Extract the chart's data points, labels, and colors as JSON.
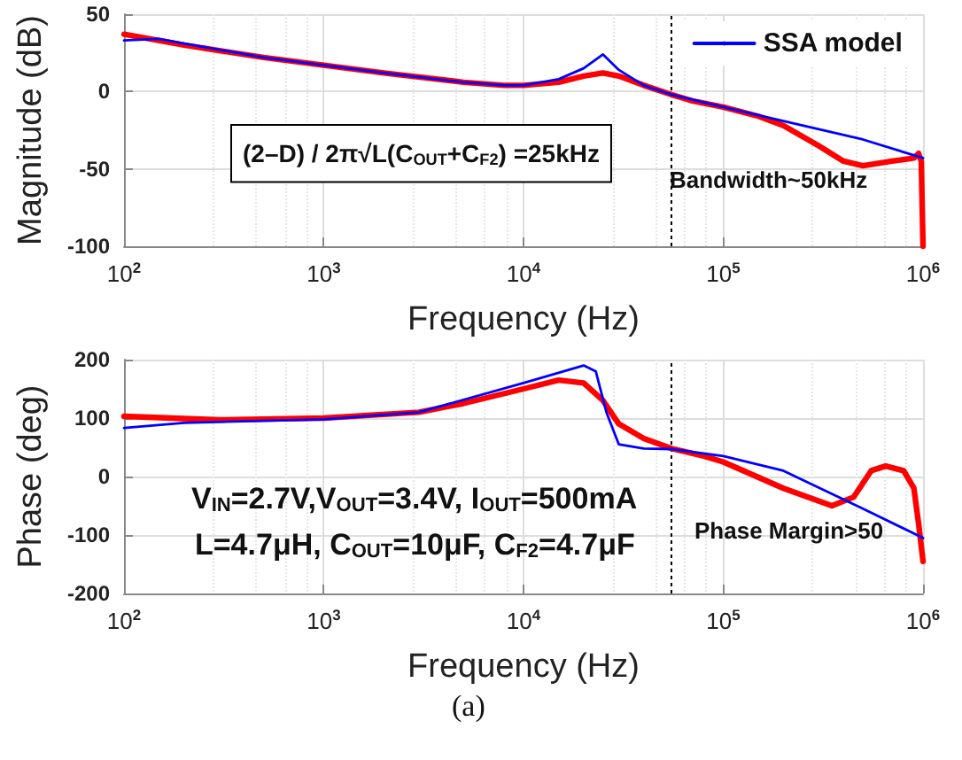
{
  "chart_data": [
    {
      "type": "line",
      "ylabel": "Magnitude (dB)",
      "xlabel": "Frequency (Hz)",
      "log": "x",
      "xlim": [
        100,
        1000000
      ],
      "xticks": [
        {
          "value": 100,
          "label": "10$^{2}$"
        },
        {
          "value": 1000,
          "label": "10$^{3}$"
        },
        {
          "value": 10000,
          "label": "10$^{4}$"
        },
        {
          "value": 100000,
          "label": "10$^{5}$"
        },
        {
          "value": 1000000,
          "label": "10$^{6}$"
        }
      ],
      "ylim": [
        -100,
        50
      ],
      "yticks": [
        -100,
        -50,
        0,
        50
      ],
      "grid": true,
      "legend": "top right",
      "series": [
        {
          "color": "#ff0000",
          "x": [
            100,
            200,
            500,
            1000,
            2000,
            5000,
            8000,
            10000,
            15000,
            20000,
            25000,
            30000,
            40000,
            55000,
            70000,
            100000,
            150000,
            200000,
            300000,
            400000,
            500000,
            700000,
            900000,
            950000,
            980000,
            1000000
          ],
          "values": [
            37,
            30,
            22,
            17,
            12,
            6,
            4,
            4,
            6,
            10,
            12,
            10,
            4,
            -2,
            -6,
            -10,
            -16,
            -22,
            -35,
            -45,
            -48,
            -45,
            -43,
            -40,
            -45,
            -100
          ]
        },
        {
          "name": "SSA model",
          "color": "#0000ff",
          "x": [
            100,
            150,
            200,
            500,
            1000,
            2000,
            5000,
            8000,
            10000,
            15000,
            20000,
            25000,
            30000,
            40000,
            55000,
            100000,
            200000,
            500000,
            1000000
          ],
          "values": [
            33,
            34,
            31,
            22,
            17,
            12,
            6,
            4,
            4,
            8,
            15,
            24,
            14,
            4,
            -2,
            -10,
            -19,
            -31,
            -43
          ]
        }
      ],
      "ref_lines": [
        {
          "axis": "x",
          "value": 55000,
          "line_style": "dotted",
          "color": "#000000"
        }
      ],
      "annotations": [
        "(2–D) / 2π√L(C$_{OUT}$+C$_{F2}$) =25kHz",
        "Bandwidth~50kHz"
      ]
    },
    {
      "type": "line",
      "ylabel": "Phase (deg)",
      "xlabel": "Frequency (Hz)",
      "log": "x",
      "xlim": [
        100,
        1000000
      ],
      "xticks": [
        {
          "value": 100,
          "label": "10$^{2}$"
        },
        {
          "value": 1000,
          "label": "10$^{3}$"
        },
        {
          "value": 10000,
          "label": "10$^{4}$"
        },
        {
          "value": 100000,
          "label": "10$^{5}$"
        },
        {
          "value": 1000000,
          "label": "10$^{6}$"
        }
      ],
      "ylim": [
        -200,
        200
      ],
      "yticks": [
        -200,
        -100,
        0,
        100,
        200
      ],
      "grid": true,
      "series": [
        {
          "color": "#ff0000",
          "x": [
            100,
            300,
            1000,
            3000,
            5000,
            10000,
            15000,
            20000,
            25000,
            30000,
            40000,
            55000,
            80000,
            100000,
            200000,
            350000,
            450000,
            550000,
            650000,
            800000,
            900000,
            950000,
            1000000
          ],
          "values": [
            103,
            97,
            100,
            110,
            125,
            150,
            165,
            160,
            130,
            90,
            65,
            48,
            35,
            25,
            -20,
            -50,
            -35,
            10,
            18,
            10,
            -20,
            -80,
            -145
          ]
        },
        {
          "color": "#0000ff",
          "x": [
            100,
            200,
            1000,
            3000,
            10000,
            20000,
            23000,
            26000,
            30000,
            40000,
            55000,
            100000,
            200000,
            500000,
            1000000
          ],
          "values": [
            83,
            92,
            98,
            110,
            160,
            190,
            180,
            110,
            55,
            48,
            47,
            35,
            10,
            -55,
            -105
          ]
        }
      ],
      "ref_lines": [
        {
          "axis": "x",
          "value": 55000,
          "line_style": "dotted",
          "color": "#000000"
        }
      ],
      "annotations": [
        "V$_{IN}$=2.7V,V$_{OUT}$=3.4V, I$_{OUT}$=500mA",
        "L=4.7μH, C$_{OUT}$=10μF, C$_{F2}$=4.7μF",
        "Phase Margin>50",
        "(a)"
      ]
    }
  ]
}
